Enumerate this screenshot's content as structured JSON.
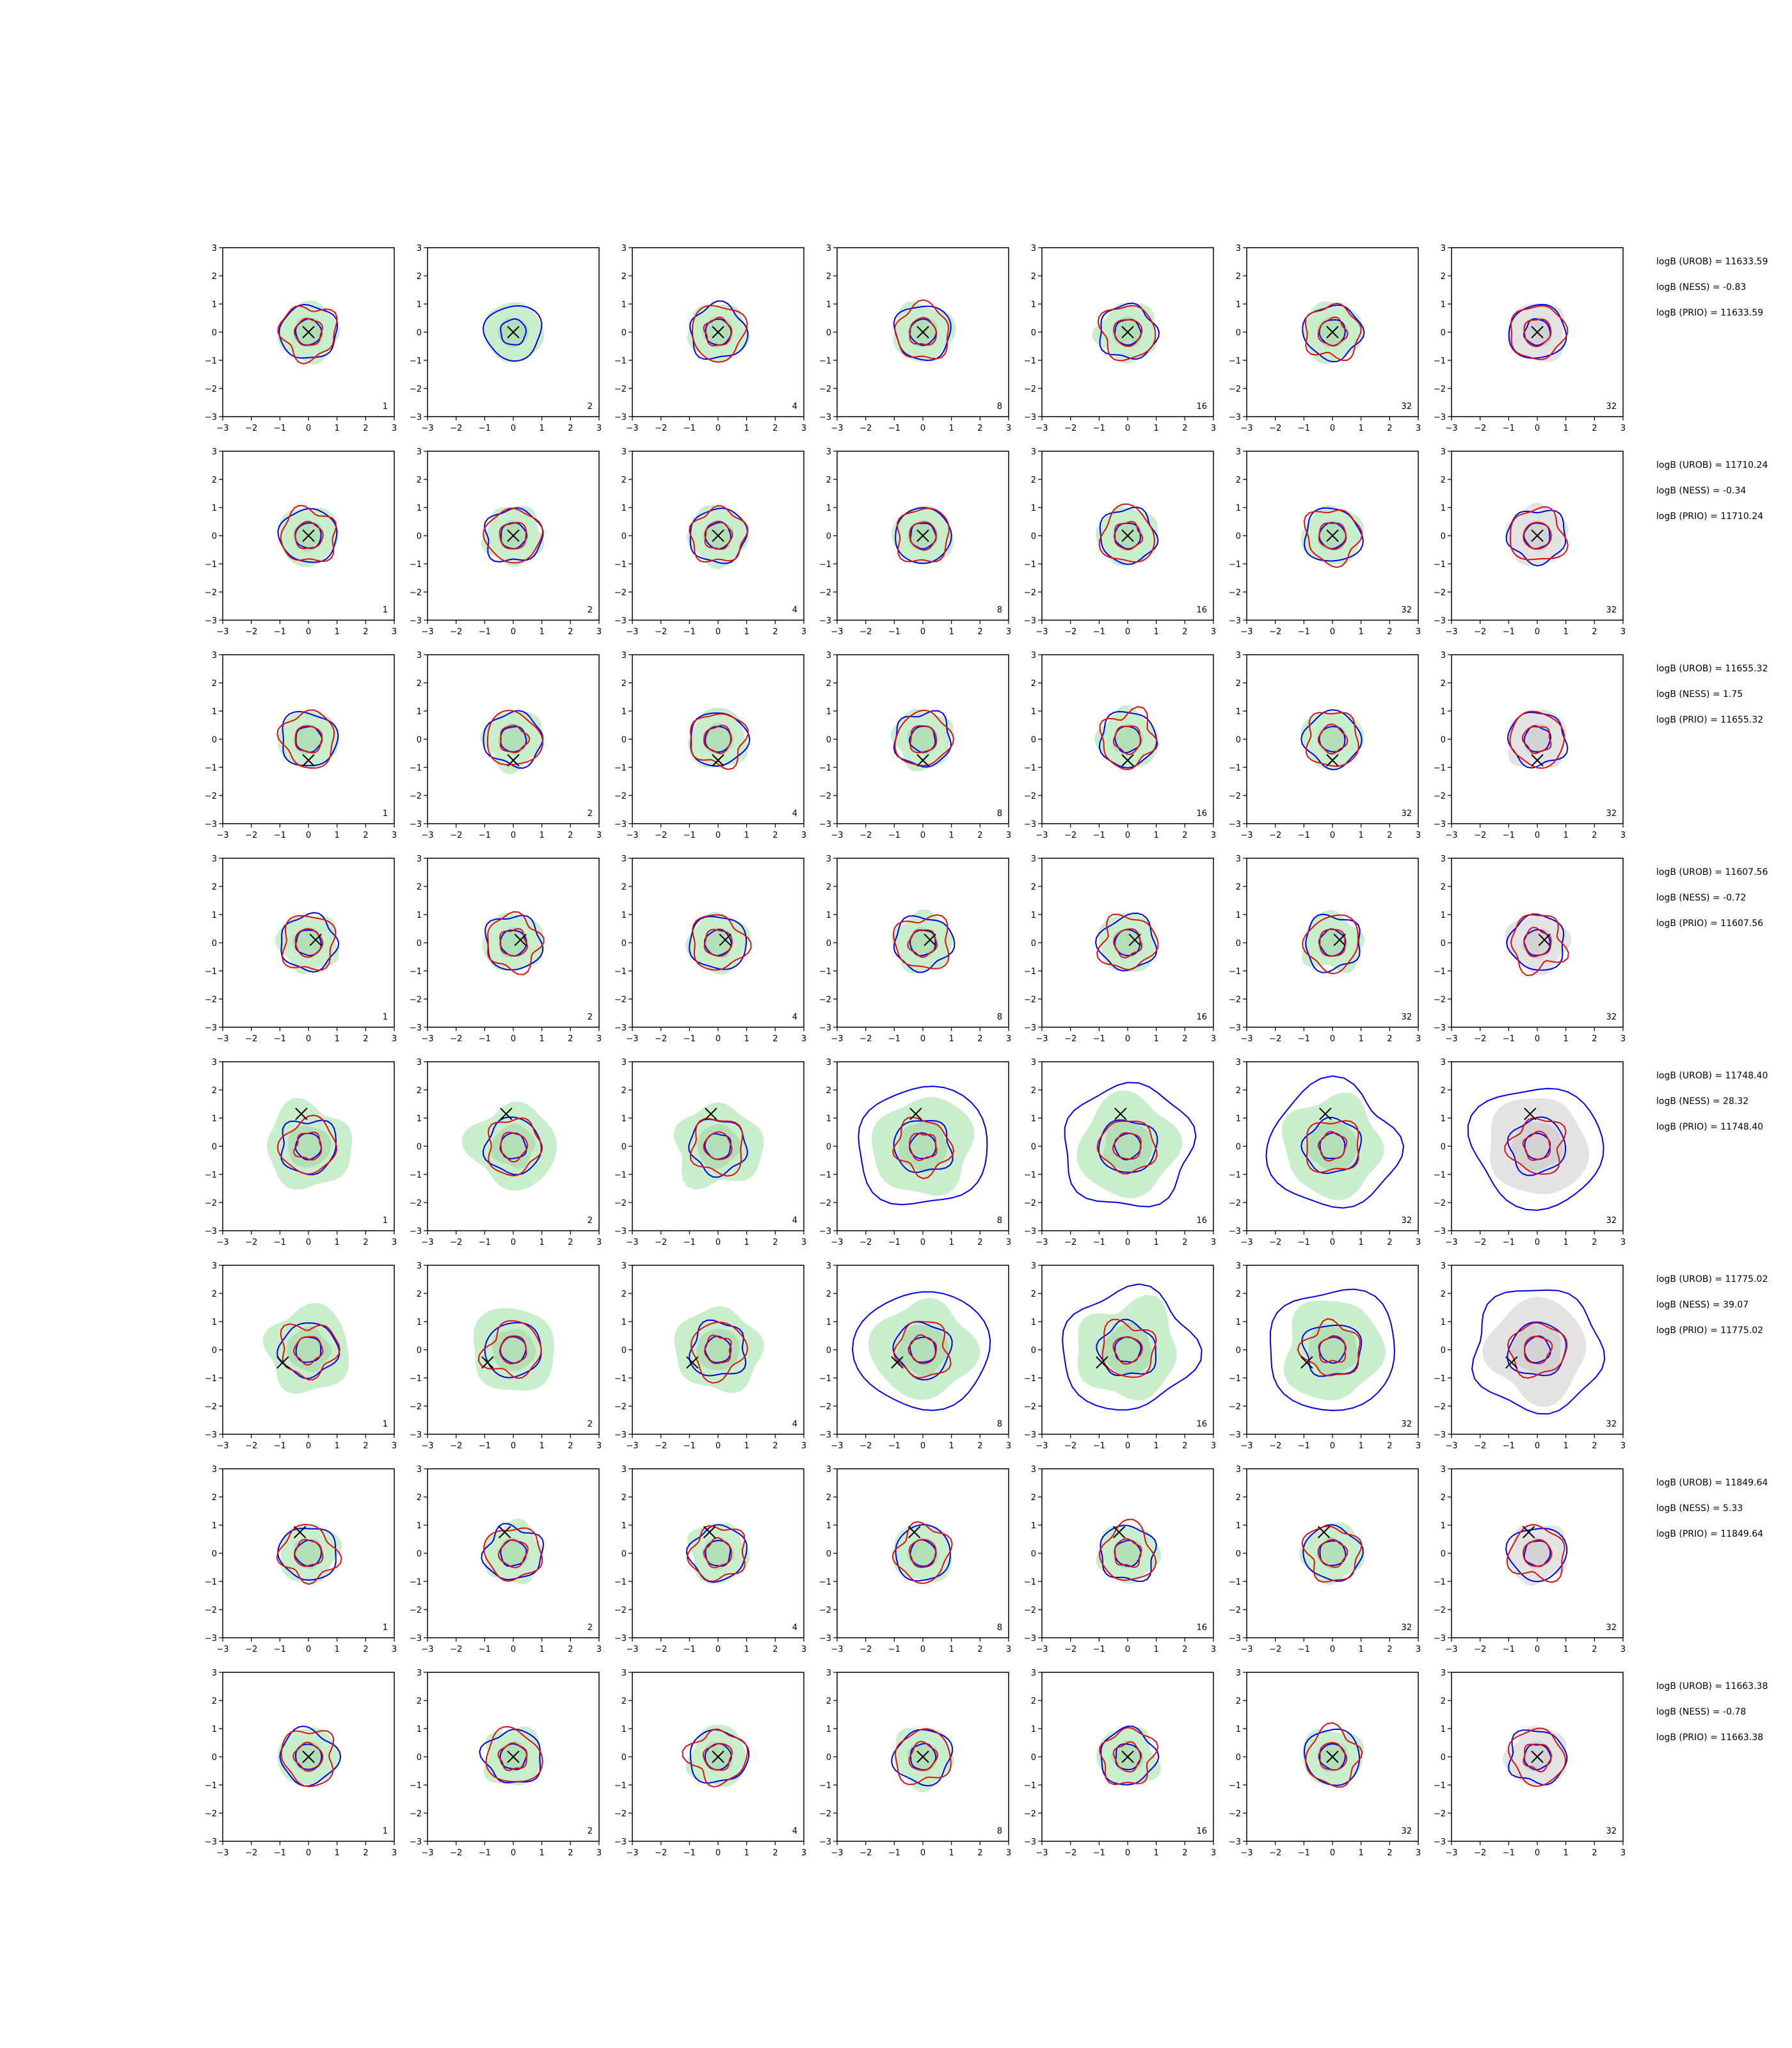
{
  "colors": {
    "ness_contour": "#0000ee",
    "urob_contour": "#dd1111",
    "ness_fill": "#c8eecb",
    "ness_fill_inner": "#a9d9ad",
    "prio_fill": "#e3e3e3",
    "prio_fill_inner": "#cccccc",
    "truth_marker": "#000000",
    "axes": "#000000"
  },
  "chart_data": {
    "type": "contour-grid",
    "grid": {
      "rows": 8,
      "cols": 7
    },
    "xlim": [
      -3,
      3
    ],
    "ylim": [
      -3,
      3
    ],
    "xticks": [
      -3,
      -2,
      -1,
      0,
      1,
      2,
      3
    ],
    "yticks": [
      -3,
      -2,
      -1,
      0,
      1,
      2,
      3
    ],
    "xtick_labels": [
      "−3",
      "−2",
      "−1",
      "0",
      "1",
      "2",
      "3"
    ],
    "ytick_labels": [
      "−3",
      "−2",
      "−1",
      "0",
      "1",
      "2",
      "3"
    ],
    "column_labels": [
      "1",
      "2",
      "4",
      "8",
      "16",
      "32",
      "32"
    ],
    "rows": [
      {
        "marker": [
          0.0,
          0.0
        ],
        "annotations": [
          "logB (UROB) = 11633.59",
          "logB (NESS) = -0.83",
          "logB (PRIO) = 11633.59"
        ]
      },
      {
        "marker": [
          0.0,
          0.0
        ],
        "annotations": [
          "logB (UROB) = 11710.24",
          "logB (NESS) = -0.34",
          "logB (PRIO) = 11710.24"
        ]
      },
      {
        "marker": [
          0.0,
          -0.75
        ],
        "annotations": [
          "logB (UROB) = 11655.32",
          "logB (NESS) = 1.75",
          "logB (PRIO) = 11655.32"
        ]
      },
      {
        "marker": [
          0.25,
          0.1
        ],
        "annotations": [
          "logB (UROB) = 11607.56",
          "logB (NESS) = -0.72",
          "logB (PRIO) = 11607.56"
        ]
      },
      {
        "marker": [
          -0.25,
          1.15
        ],
        "annotations": [
          "logB (UROB) = 11748.40",
          "logB (NESS) = 28.32",
          "logB (PRIO) = 11748.40"
        ]
      },
      {
        "marker": [
          -0.9,
          -0.45
        ],
        "annotations": [
          "logB (UROB) = 11775.02",
          "logB (NESS) = 39.07",
          "logB (PRIO) = 11775.02"
        ]
      },
      {
        "marker": [
          -0.3,
          0.75
        ],
        "annotations": [
          "logB (UROB) = 11849.64",
          "logB (NESS) = 5.33",
          "logB (PRIO) = 11849.64"
        ]
      },
      {
        "marker": [
          0.0,
          0.0
        ],
        "annotations": [
          "logB (UROB) = 11663.38",
          "logB (NESS) = -0.78",
          "logB (PRIO) = 11663.38"
        ]
      }
    ]
  }
}
